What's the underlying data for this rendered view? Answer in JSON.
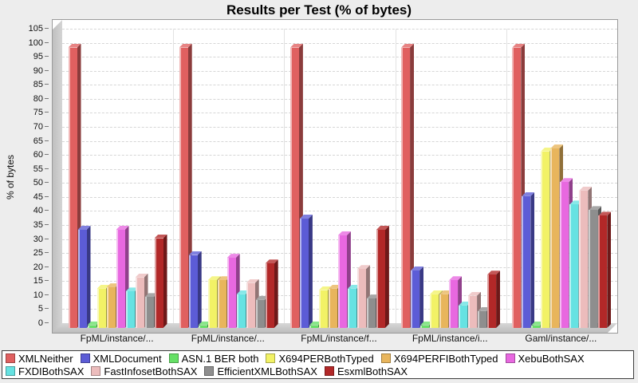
{
  "title": "Results per Test (% of bytes)",
  "chart_data": {
    "type": "bar",
    "subtype": "3d-grouped-bar",
    "title": "Results per Test (% of bytes)",
    "xlabel": "",
    "ylabel": "% of bytes",
    "ylim": [
      0,
      105
    ],
    "ytick_step": 5,
    "grid": "horizontal-dashed",
    "legend_position": "bottom",
    "categories": [
      "FpML/instance/...",
      "FpML/instance/...",
      "FpML/instance/f...",
      "FpML/instance/i...",
      "Gaml/instance/..."
    ],
    "series": [
      {
        "name": "XMLNeither",
        "color": "#e06060",
        "values": [
          100,
          100,
          100,
          100,
          100
        ]
      },
      {
        "name": "XMLDocument",
        "color": "#5c5cd6",
        "values": [
          35,
          26,
          39,
          20.5,
          47
        ]
      },
      {
        "name": "ASN.1 BER both",
        "color": "#66e066",
        "values": [
          1,
          1,
          1,
          1,
          1
        ]
      },
      {
        "name": "X694PERBothTyped",
        "color": "#f2f266",
        "values": [
          14,
          17,
          13.5,
          12,
          63
        ]
      },
      {
        "name": "X694PERFIBothTyped",
        "color": "#e8b55c",
        "values": [
          14.5,
          17,
          14,
          12,
          64
        ]
      },
      {
        "name": "XebuBothSAX",
        "color": "#e868e0",
        "values": [
          35,
          25,
          33,
          17,
          52
        ]
      },
      {
        "name": "FXDIBothSAX",
        "color": "#66e2e2",
        "values": [
          13,
          12,
          14,
          8,
          44
        ]
      },
      {
        "name": "FastInfosetBothSAX",
        "color": "#ecbcbc",
        "values": [
          18,
          16,
          21,
          11.5,
          49
        ]
      },
      {
        "name": "EfficientXMLBothSAX",
        "color": "#8e8e8e",
        "values": [
          11,
          10,
          10.5,
          6,
          42
        ]
      },
      {
        "name": "EsxmlBothSAX",
        "color": "#b22828",
        "values": [
          32,
          23,
          35,
          19,
          40
        ]
      }
    ]
  },
  "colors": {
    "page_background": "#ededed",
    "plot_background": "#ffffff",
    "wall": "#c8c8c8",
    "gridline": "#d6d6d6",
    "plot_border": "#9a9a9a",
    "legend_border": "#3c3c3c",
    "text": "#000000"
  }
}
